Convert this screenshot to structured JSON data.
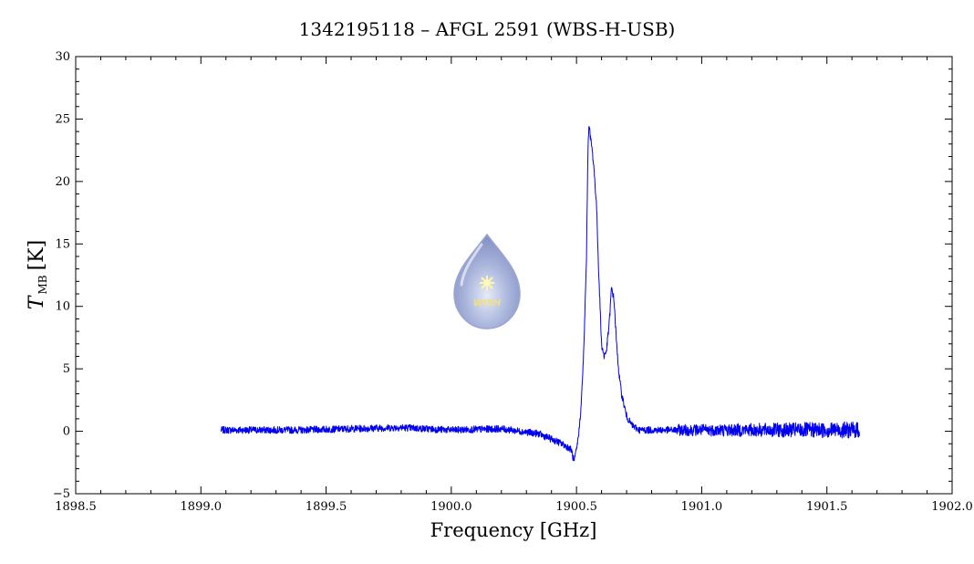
{
  "chart_data": {
    "type": "line",
    "title": "1342195118 – AFGL 2591 (WBS-H-USB)",
    "xlabel": "Frequency [GHz]",
    "ylabel_symbol": "T",
    "ylabel_subscript": "MB",
    "ylabel_unit": "[K]",
    "xlim": [
      1898.5,
      1902.0
    ],
    "ylim": [
      -5,
      30
    ],
    "xticks": [
      1898.5,
      1899.0,
      1899.5,
      1900.0,
      1900.5,
      1901.0,
      1901.5,
      1902.0
    ],
    "xtick_labels": [
      "1898.5",
      "1899.0",
      "1899.5",
      "1900.0",
      "1900.5",
      "1901.0",
      "1901.5",
      "1902.0"
    ],
    "yticks": [
      -5,
      0,
      5,
      10,
      15,
      20,
      25,
      30
    ],
    "ytick_labels": [
      "−5",
      "0",
      "5",
      "10",
      "15",
      "20",
      "25",
      "30"
    ],
    "grid": false,
    "series": [
      {
        "color": "#0000ee",
        "x": [
          1899.08,
          1899.2,
          1899.4,
          1899.6,
          1899.8,
          1900.0,
          1900.2,
          1900.35,
          1900.42,
          1900.46,
          1900.48,
          1900.49,
          1900.5,
          1900.51,
          1900.52,
          1900.53,
          1900.54,
          1900.545,
          1900.55,
          1900.555,
          1900.56,
          1900.57,
          1900.58,
          1900.59,
          1900.6,
          1900.61,
          1900.62,
          1900.63,
          1900.64,
          1900.65,
          1900.66,
          1900.67,
          1900.68,
          1900.7,
          1900.72,
          1900.75,
          1900.8,
          1901.0,
          1901.2,
          1901.4,
          1901.63
        ],
        "y": [
          0.1,
          0.1,
          0.1,
          0.2,
          0.3,
          0.1,
          0.2,
          -0.2,
          -0.8,
          -1.2,
          -1.5,
          -2.5,
          -1.5,
          0.0,
          2.5,
          7.0,
          14.0,
          22.0,
          24.8,
          23.5,
          23.0,
          21.0,
          18.0,
          12.0,
          7.0,
          6.0,
          6.5,
          8.5,
          11.5,
          10.5,
          7.0,
          4.5,
          3.0,
          1.2,
          0.5,
          0.1,
          0.1,
          0.1,
          0.1,
          0.1,
          0.1
        ]
      }
    ]
  },
  "logo": {
    "text": "WISH"
  }
}
